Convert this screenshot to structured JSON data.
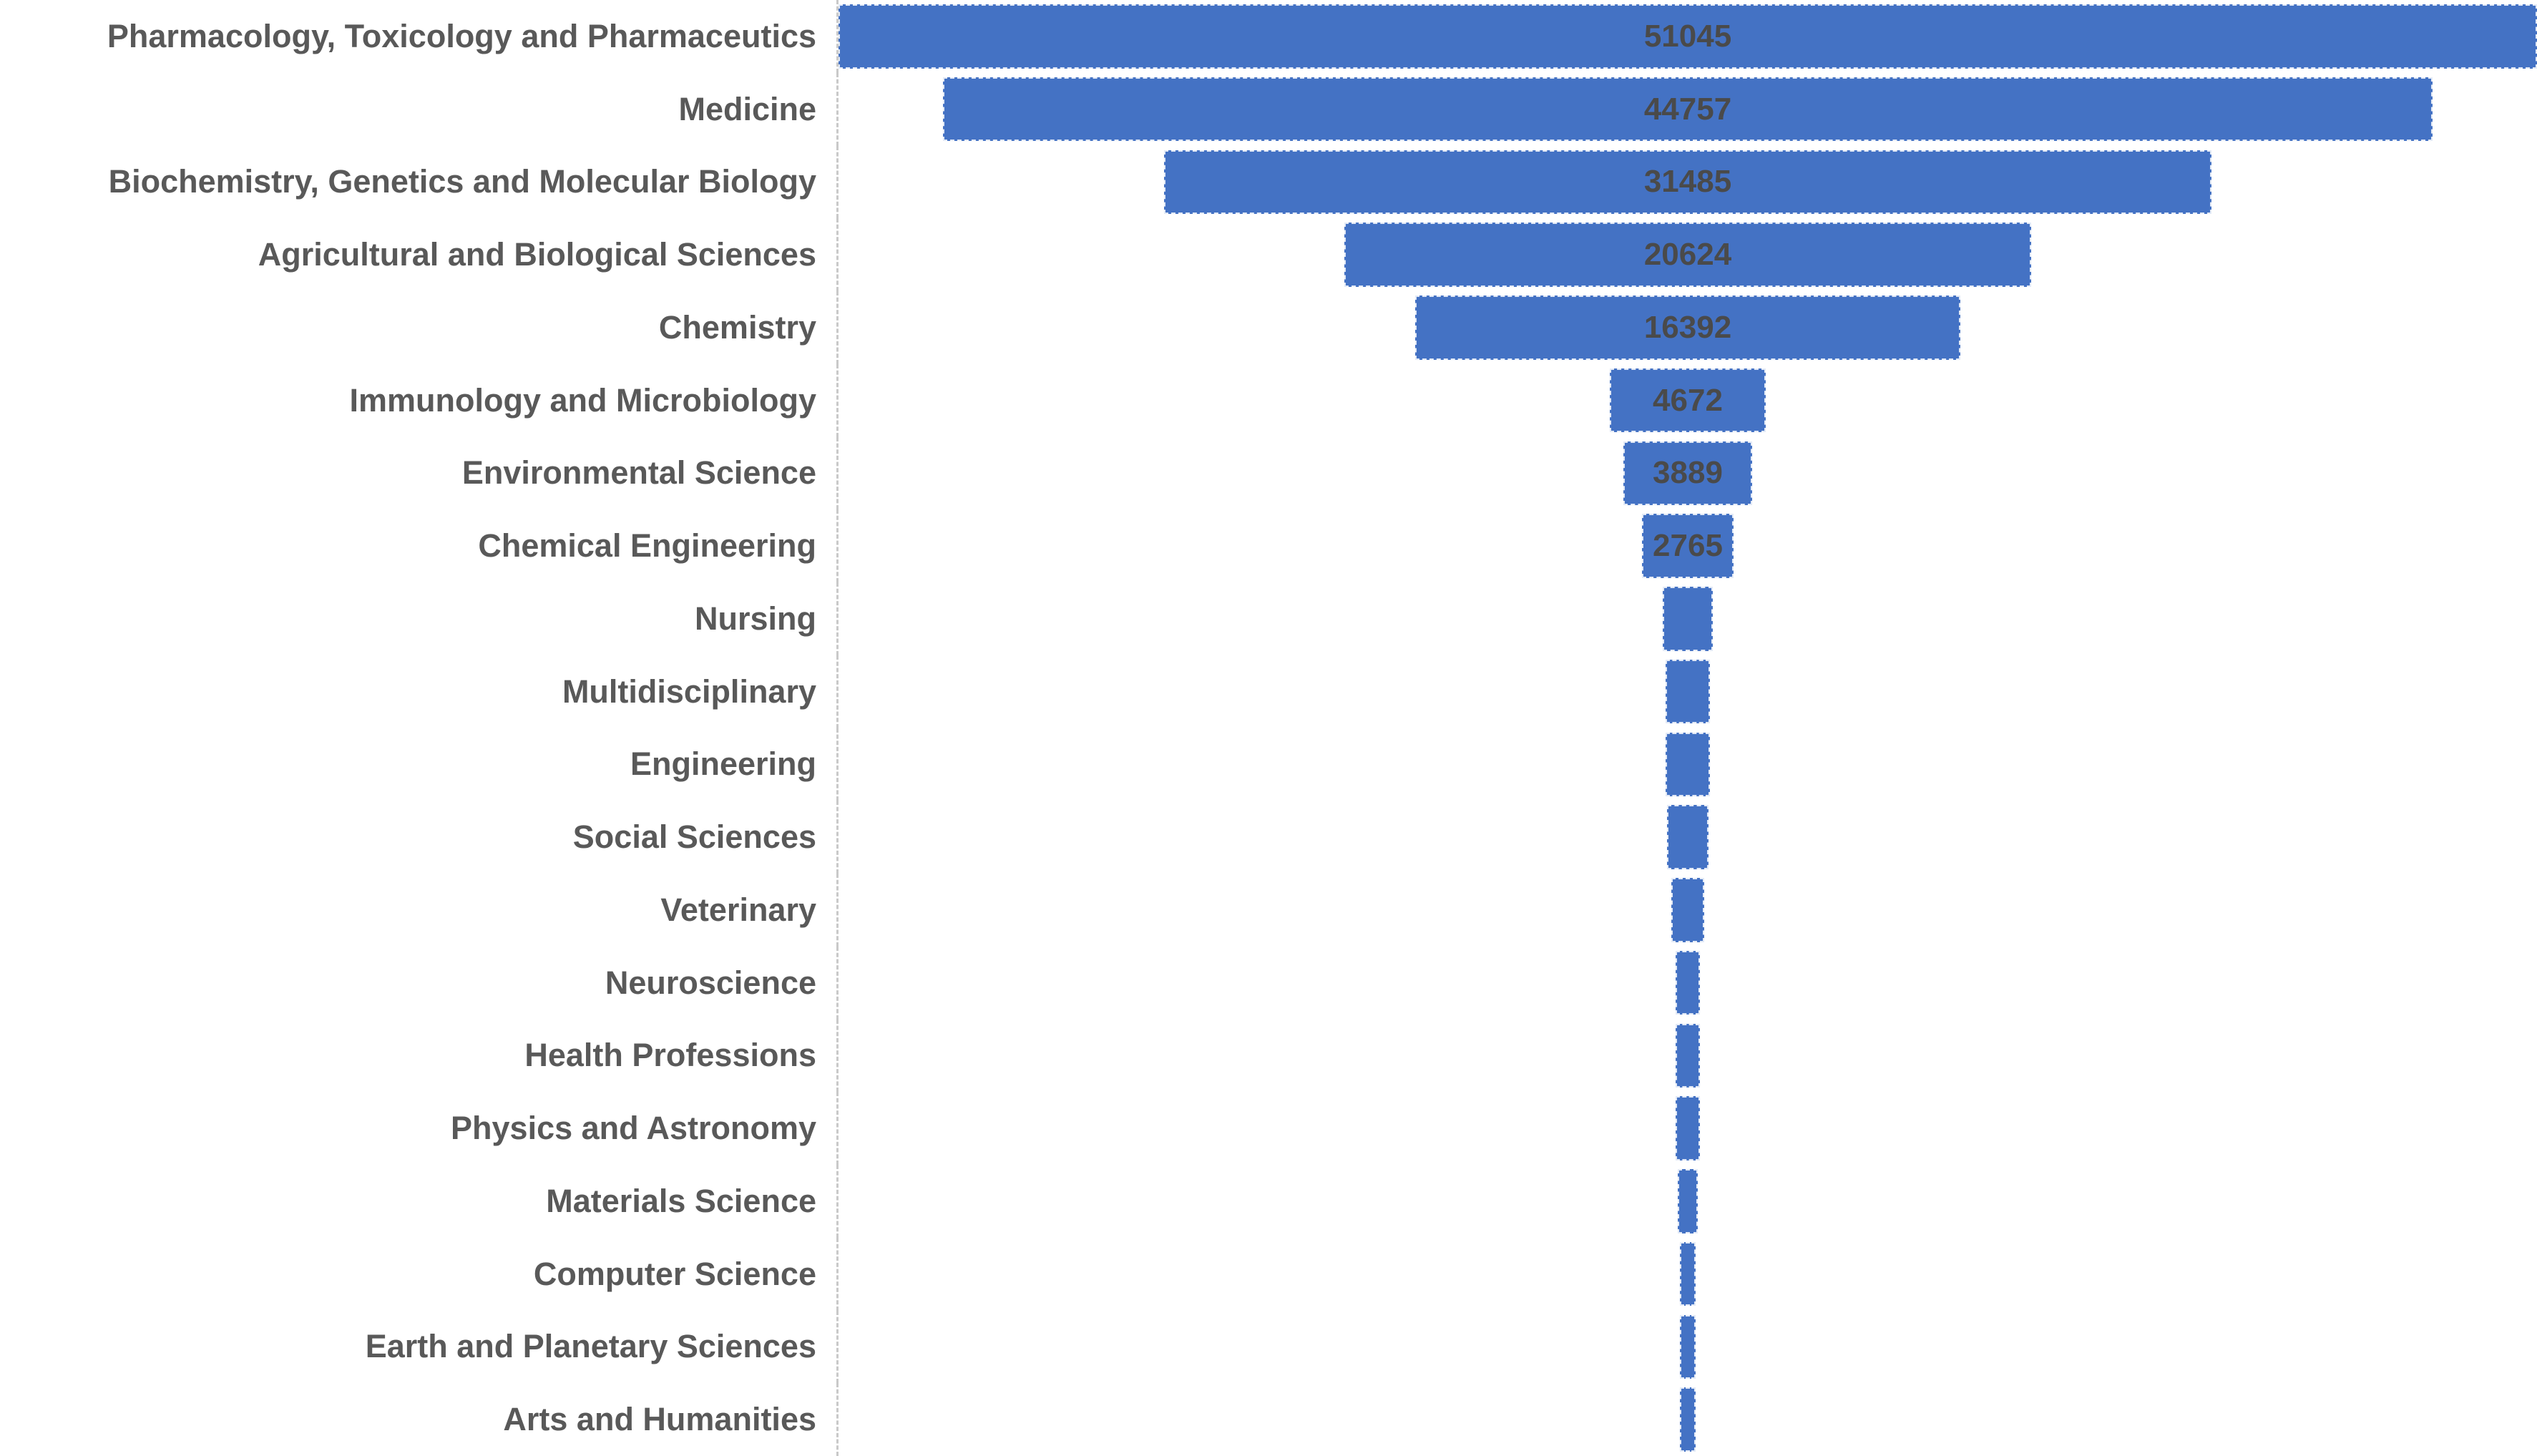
{
  "chart": {
    "background": "#ffffff",
    "bar_color": "#4472C4",
    "bar_outline_color": "#ffffff",
    "category_label_color": "#595959",
    "value_label_color": "#4a4a4a",
    "axis_line_color": "#c9c9c9"
  },
  "chart_data": {
    "type": "funnel",
    "title": "",
    "xlabel": "",
    "ylabel": "",
    "legend": "none",
    "grid": false,
    "axis_line": "dashed vertical line separating category labels from plot area",
    "bar_order": "descending top to bottom, bars horizontally centered",
    "max_value": 51045,
    "categories": [
      "Pharmacology, Toxicology and Pharmaceutics",
      "Medicine",
      "Biochemistry, Genetics and Molecular Biology",
      "Agricultural and Biological Sciences",
      "Chemistry",
      "Immunology and Microbiology",
      "Environmental Science",
      "Chemical Engineering",
      "Nursing",
      "Multidisciplinary",
      "Engineering",
      "Social Sciences",
      "Veterinary",
      "Neuroscience",
      "Health Professions",
      "Physics and Astronomy",
      "Materials Science",
      "Computer Science",
      "Earth and Planetary Sciences",
      "Arts and Humanities"
    ],
    "values": [
      51045,
      44757,
      31485,
      20624,
      16392,
      4672,
      3889,
      2765,
      1510,
      1320,
      1315,
      1250,
      970,
      750,
      730,
      710,
      600,
      480,
      475,
      470
    ],
    "data_labels": [
      "51045",
      "44757",
      "31485",
      "20624",
      "16392",
      "4672",
      "3889",
      "2765",
      "",
      "",
      "",
      "",
      "",
      "",
      "",
      "",
      "",
      "",
      "",
      ""
    ],
    "unlabeled_values_estimated_from_bar_width": true
  }
}
